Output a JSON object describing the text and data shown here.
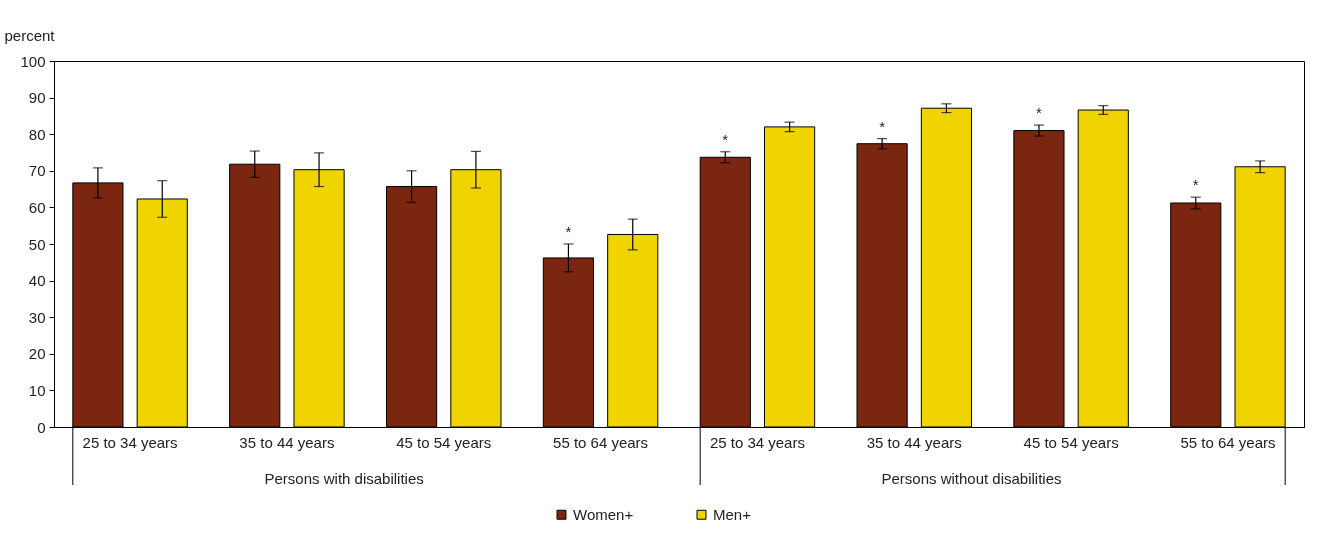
{
  "chart_data": {
    "type": "bar",
    "ylabel": "percent",
    "categories": [
      "25 to 34 years",
      "35 to 44 years",
      "45 to 54 years",
      "55 to 64 years",
      "25 to 34 years",
      "35 to 44 years",
      "45 to 54 years",
      "55 to 64 years"
    ],
    "series": [
      {
        "name": "Women+",
        "color": "#7b2610",
        "values": [
          66.7,
          71.8,
          65.7,
          46.2,
          73.7,
          77.4,
          81.0,
          61.2
        ],
        "errors": [
          4.1,
          3.6,
          4.3,
          3.8,
          1.5,
          1.4,
          1.5,
          1.6
        ],
        "value_labels": [
          null,
          null,
          null,
          "*",
          "*",
          "*",
          "*",
          "*"
        ]
      },
      {
        "name": "Men+",
        "color": "#f0d400",
        "values": [
          62.3,
          70.3,
          70.3,
          52.6,
          82.0,
          87.1,
          86.6,
          71.1
        ],
        "errors": [
          5.0,
          4.6,
          5.0,
          4.2,
          1.3,
          1.2,
          1.2,
          1.6
        ]
      }
    ],
    "annotations": [
      "Persons with disabilities",
      "Persons without disabilities"
    ],
    "ylim": [
      0,
      100
    ],
    "yticks": [
      0,
      10,
      20,
      30,
      40,
      50,
      60,
      70,
      80,
      90,
      100
    ],
    "grid": false,
    "legend": "bottom"
  }
}
